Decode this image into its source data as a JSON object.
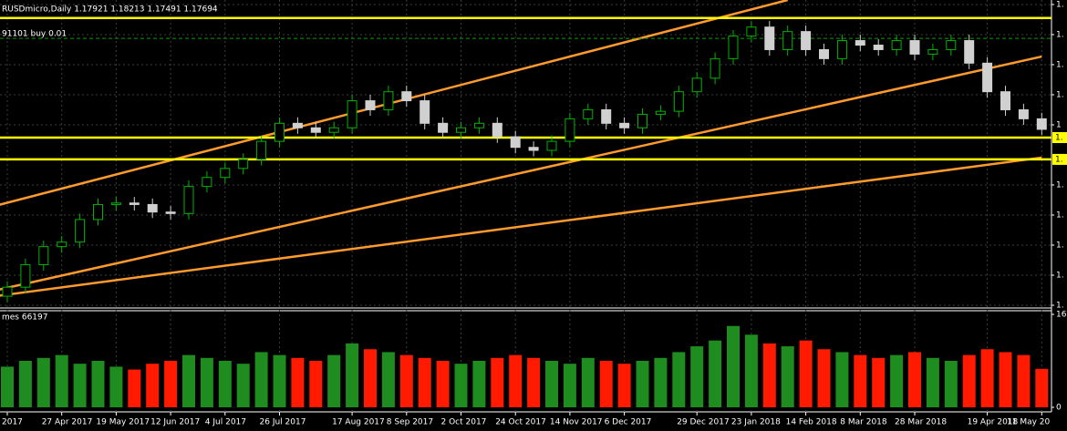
{
  "chart_data": [
    {
      "type": "candlestick",
      "title": "RUSDmicro,Daily  1.17921 1.18213 1.17491 1.17694",
      "order_label": "91101 buy 0.01",
      "categories": [
        "2017",
        null,
        null,
        "27 Apr 2017",
        null,
        null,
        "19 May 2017",
        null,
        null,
        "12 Jun 2017",
        null,
        null,
        "4 Jul 2017",
        null,
        null,
        "26 Jul 2017",
        null,
        null,
        null,
        "17 Aug 2017",
        null,
        null,
        "8 Sep 2017",
        null,
        null,
        "2 Oct 2017",
        null,
        null,
        "24 Oct 2017",
        null,
        null,
        "14 Nov 2017",
        null,
        null,
        "6 Dec 2017",
        null,
        null,
        null,
        "29 Dec 2017",
        null,
        null,
        "23 Jan 2018",
        null,
        null,
        "14 Feb 2018",
        null,
        null,
        "8 Mar 2018",
        null,
        null,
        "28 Mar 2018",
        null,
        null,
        null,
        "19 Apr 2018",
        null,
        null,
        "11 May 20"
      ],
      "open": [
        1.066,
        1.072,
        1.087,
        1.099,
        1.102,
        1.117,
        1.127,
        1.128,
        1.127,
        1.122,
        1.121,
        1.139,
        1.145,
        1.151,
        1.157,
        1.169,
        1.181,
        1.178,
        1.175,
        1.178,
        1.196,
        1.19,
        1.202,
        1.196,
        1.181,
        1.175,
        1.178,
        1.181,
        1.172,
        1.165,
        1.163,
        1.169,
        1.184,
        1.19,
        1.181,
        1.178,
        1.187,
        1.189,
        1.202,
        1.211,
        1.224,
        1.239,
        1.245,
        1.23,
        1.242,
        1.23,
        1.224,
        1.236,
        1.233,
        1.23,
        1.236,
        1.227,
        1.23,
        1.236,
        1.221,
        1.202,
        1.19,
        1.184
      ],
      "high": [
        1.076,
        1.091,
        1.103,
        1.106,
        1.121,
        1.131,
        1.132,
        1.132,
        1.131,
        1.126,
        1.143,
        1.149,
        1.155,
        1.161,
        1.173,
        1.185,
        1.185,
        1.182,
        1.182,
        1.2,
        1.2,
        1.206,
        1.206,
        1.2,
        1.185,
        1.182,
        1.185,
        1.185,
        1.176,
        1.169,
        1.173,
        1.188,
        1.194,
        1.194,
        1.185,
        1.191,
        1.193,
        1.206,
        1.215,
        1.228,
        1.243,
        1.249,
        1.249,
        1.246,
        1.246,
        1.234,
        1.24,
        1.24,
        1.237,
        1.24,
        1.24,
        1.234,
        1.24,
        1.24,
        1.225,
        1.206,
        1.194,
        1.188
      ],
      "low": [
        1.062,
        1.068,
        1.083,
        1.095,
        1.098,
        1.113,
        1.123,
        1.123,
        1.118,
        1.117,
        1.117,
        1.135,
        1.141,
        1.147,
        1.153,
        1.165,
        1.174,
        1.171,
        1.171,
        1.174,
        1.186,
        1.186,
        1.192,
        1.177,
        1.171,
        1.171,
        1.174,
        1.168,
        1.161,
        1.159,
        1.159,
        1.165,
        1.18,
        1.177,
        1.174,
        1.174,
        1.183,
        1.185,
        1.198,
        1.207,
        1.22,
        1.235,
        1.226,
        1.226,
        1.226,
        1.22,
        1.22,
        1.229,
        1.226,
        1.226,
        1.223,
        1.223,
        1.226,
        1.217,
        1.198,
        1.186,
        1.18,
        1.173
      ],
      "close": [
        1.072,
        1.087,
        1.099,
        1.102,
        1.117,
        1.127,
        1.128,
        1.127,
        1.122,
        1.121,
        1.139,
        1.145,
        1.151,
        1.157,
        1.169,
        1.181,
        1.178,
        1.175,
        1.178,
        1.196,
        1.19,
        1.202,
        1.196,
        1.181,
        1.175,
        1.178,
        1.181,
        1.172,
        1.165,
        1.163,
        1.169,
        1.184,
        1.19,
        1.181,
        1.178,
        1.187,
        1.189,
        1.202,
        1.211,
        1.224,
        1.239,
        1.245,
        1.23,
        1.242,
        1.23,
        1.224,
        1.236,
        1.233,
        1.23,
        1.236,
        1.227,
        1.23,
        1.236,
        1.221,
        1.202,
        1.19,
        1.184,
        1.177
      ],
      "up_color": "#00b400",
      "down_color": "#d0d0d0",
      "ylim": [
        1.06,
        1.263
      ],
      "yticks": [
        {
          "value": 1.26,
          "label": "1."
        },
        {
          "value": 1.24,
          "label": "1."
        },
        {
          "value": 1.22,
          "label": "1."
        },
        {
          "value": 1.2,
          "label": "1."
        },
        {
          "value": 1.18,
          "label": "1"
        },
        {
          "value": 1.14,
          "label": "1."
        },
        {
          "value": 1.12,
          "label": "1."
        },
        {
          "value": 1.1,
          "label": "1."
        },
        {
          "value": 1.08,
          "label": "1."
        },
        {
          "value": 1.06,
          "label": "1."
        }
      ],
      "grid": true,
      "hlines": [
        {
          "value": 1.251,
          "color": "#ffff00"
        },
        {
          "value": 1.2375,
          "color": "#00a000",
          "dashed": true
        },
        {
          "value": 1.1715,
          "color": "#ffff00",
          "label": "1."
        },
        {
          "value": 1.157,
          "color": "#ffff00",
          "label": "1."
        }
      ],
      "trendlines": [
        {
          "from": [
            -0.5,
            1.1266
          ],
          "to": [
            43,
            1.263
          ],
          "color": "#ff9a2e"
        },
        {
          "from": [
            -0.5,
            1.0703
          ],
          "to": [
            57,
            1.2254
          ],
          "color": "#ff9a2e"
        },
        {
          "from": [
            -0.5,
            1.0663
          ],
          "to": [
            57,
            1.1582
          ],
          "color": "#ff9a2e"
        }
      ]
    },
    {
      "type": "bar",
      "title": "mes 66197",
      "values": [
        70000,
        80000,
        85000,
        90000,
        75000,
        80000,
        70000,
        65000,
        75000,
        80000,
        90000,
        85000,
        80000,
        75000,
        95000,
        90000,
        85000,
        80000,
        90000,
        110000,
        100000,
        95000,
        90000,
        85000,
        80000,
        75000,
        80000,
        85000,
        90000,
        85000,
        80000,
        75000,
        85000,
        80000,
        75000,
        80000,
        85000,
        95000,
        105000,
        115000,
        140000,
        125000,
        110000,
        105000,
        115000,
        100000,
        95000,
        90000,
        85000,
        90000,
        95000,
        85000,
        80000,
        90000,
        100000,
        95000,
        90000,
        66197
      ],
      "up_color": "#1e8c1e",
      "down_color": "#ff1a00",
      "ylim": [
        0,
        160000
      ],
      "yticks": [
        {
          "value": 160000,
          "label": "16"
        },
        0
      ]
    }
  ]
}
